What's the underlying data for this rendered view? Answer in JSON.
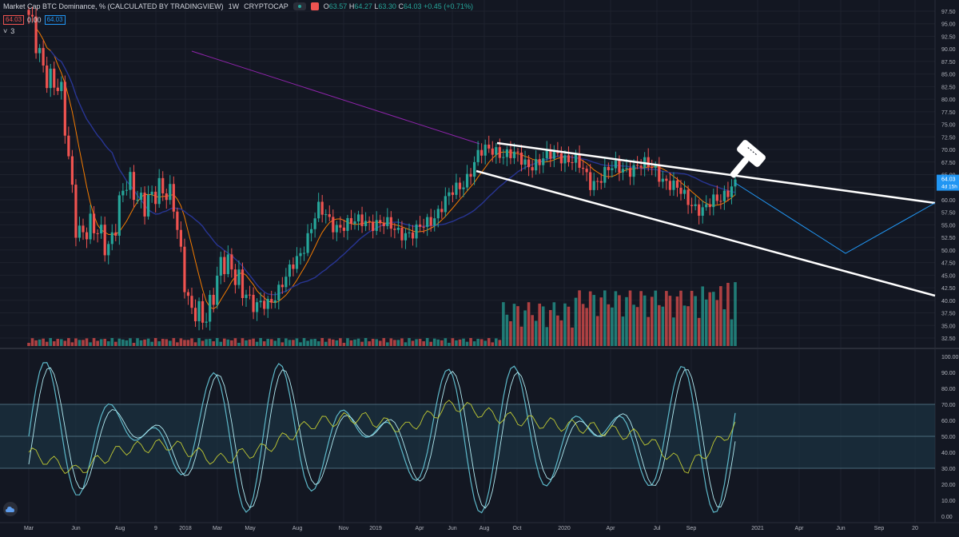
{
  "header": {
    "symbol_title": "Market Cap BTC Dominance, % (CALCULATED BY TRADINGVIEW)",
    "interval": "1W",
    "exchange": "CRYPTOCAP",
    "ohlc": {
      "o_label": "O",
      "o": "63.57",
      "h_label": "H",
      "h": "64.27",
      "l_label": "L",
      "l": "63.30",
      "c_label": "C",
      "c": "64.03",
      "change": "+0.45 (+0.71%)"
    },
    "row2": {
      "tag_a": "64.03",
      "zero": "0.00",
      "tag_b": "64.03"
    },
    "row3": {
      "collapse": "˅",
      "count": "3"
    }
  },
  "price_axis": {
    "labels": [
      "97.50",
      "95.00",
      "92.50",
      "90.00",
      "87.50",
      "85.00",
      "82.50",
      "80.00",
      "77.50",
      "75.00",
      "72.50",
      "70.00",
      "67.50",
      "65.00",
      "62.50",
      "60.00",
      "57.50",
      "55.00",
      "52.50",
      "50.00",
      "47.50",
      "45.00",
      "42.50",
      "40.00",
      "37.50",
      "35.00",
      "32.50"
    ],
    "current_price": "64.03",
    "countdown": "4d 15h"
  },
  "osc_axis": {
    "labels": [
      "100.00",
      "90.00",
      "80.00",
      "70.00",
      "60.00",
      "50.00",
      "40.00",
      "30.00",
      "20.00",
      "10.00",
      "0.00"
    ]
  },
  "time_axis": {
    "labels": [
      "Mar",
      "Jun",
      "Aug",
      "9",
      "2018",
      "Mar",
      "May",
      "Aug",
      "Nov",
      "2019",
      "Apr",
      "Jun",
      "Aug",
      "Oct",
      "2020",
      "Apr",
      "Jul",
      "Sep",
      "2021",
      "Apr",
      "Jun",
      "Sep",
      "20"
    ]
  },
  "colors": {
    "background": "#131722",
    "up": "#26a69a",
    "down": "#ef5350",
    "ma_fast": "#f57c00",
    "ma_slow": "#283593",
    "ma_long": "#8e24aa",
    "trendline": "#ffffff",
    "projection": "#2196f3",
    "stoch_k": "#5db8c9",
    "stoch_d": "#b2ebf2",
    "rsi": "#c0ca33",
    "band": "#1e3a4a"
  },
  "icons": {
    "gavel": "gavel-icon",
    "logo": "tradingview-logo-icon"
  },
  "chart_data": {
    "type": "candlestick",
    "title": "Market Cap BTC Dominance, % (CALCULATED BY TRADINGVIEW)",
    "interval": "1W",
    "ylim": [
      32.5,
      97.5
    ],
    "close_series": [
      [
        "2017-03",
        95
      ],
      [
        "2017-04",
        87
      ],
      [
        "2017-05",
        80
      ],
      [
        "2017-06",
        55
      ],
      [
        "2017-07",
        53
      ],
      [
        "2017-08",
        52
      ],
      [
        "2017-09",
        62
      ],
      [
        "2017-10",
        61
      ],
      [
        "2017-11",
        60
      ],
      [
        "2017-12",
        62
      ],
      [
        "2018-01",
        36
      ],
      [
        "2018-02",
        38
      ],
      [
        "2018-03",
        46
      ],
      [
        "2018-04",
        46
      ],
      [
        "2018-05",
        38
      ],
      [
        "2018-06",
        40
      ],
      [
        "2018-07",
        44
      ],
      [
        "2018-08",
        50
      ],
      [
        "2018-09",
        58
      ],
      [
        "2018-10",
        55
      ],
      [
        "2018-11",
        55
      ],
      [
        "2018-12",
        56
      ],
      [
        "2019-01",
        55
      ],
      [
        "2019-02",
        54
      ],
      [
        "2019-03",
        53
      ],
      [
        "2019-04",
        56
      ],
      [
        "2019-05",
        60
      ],
      [
        "2019-06",
        63
      ],
      [
        "2019-07",
        69
      ],
      [
        "2019-08",
        70
      ],
      [
        "2019-09",
        69
      ],
      [
        "2019-10",
        67
      ],
      [
        "2019-11",
        68
      ],
      [
        "2019-12",
        69
      ],
      [
        "2020-01",
        68
      ],
      [
        "2020-02",
        63
      ],
      [
        "2020-03",
        66
      ],
      [
        "2020-04",
        66
      ],
      [
        "2020-05",
        67
      ],
      [
        "2020-06",
        66
      ],
      [
        "2020-07",
        63
      ],
      [
        "2020-08",
        60
      ],
      [
        "2020-09",
        58
      ],
      [
        "2020-10",
        60
      ],
      [
        "2020-11",
        64.03
      ]
    ],
    "oscillator": {
      "ylim": [
        0,
        100
      ],
      "band": [
        30,
        70
      ],
      "midline": 50,
      "rsi_approx": [
        [
          "2017-03",
          40
        ],
        [
          "2017-06",
          28
        ],
        [
          "2017-09",
          42
        ],
        [
          "2017-12",
          45
        ],
        [
          "2018-03",
          35
        ],
        [
          "2018-06",
          42
        ],
        [
          "2018-09",
          58
        ],
        [
          "2018-12",
          62
        ],
        [
          "2019-03",
          55
        ],
        [
          "2019-06",
          70
        ],
        [
          "2019-09",
          62
        ],
        [
          "2019-12",
          58
        ],
        [
          "2020-03",
          55
        ],
        [
          "2020-06",
          50
        ],
        [
          "2020-09",
          30
        ],
        [
          "2020-11",
          56
        ]
      ]
    }
  }
}
